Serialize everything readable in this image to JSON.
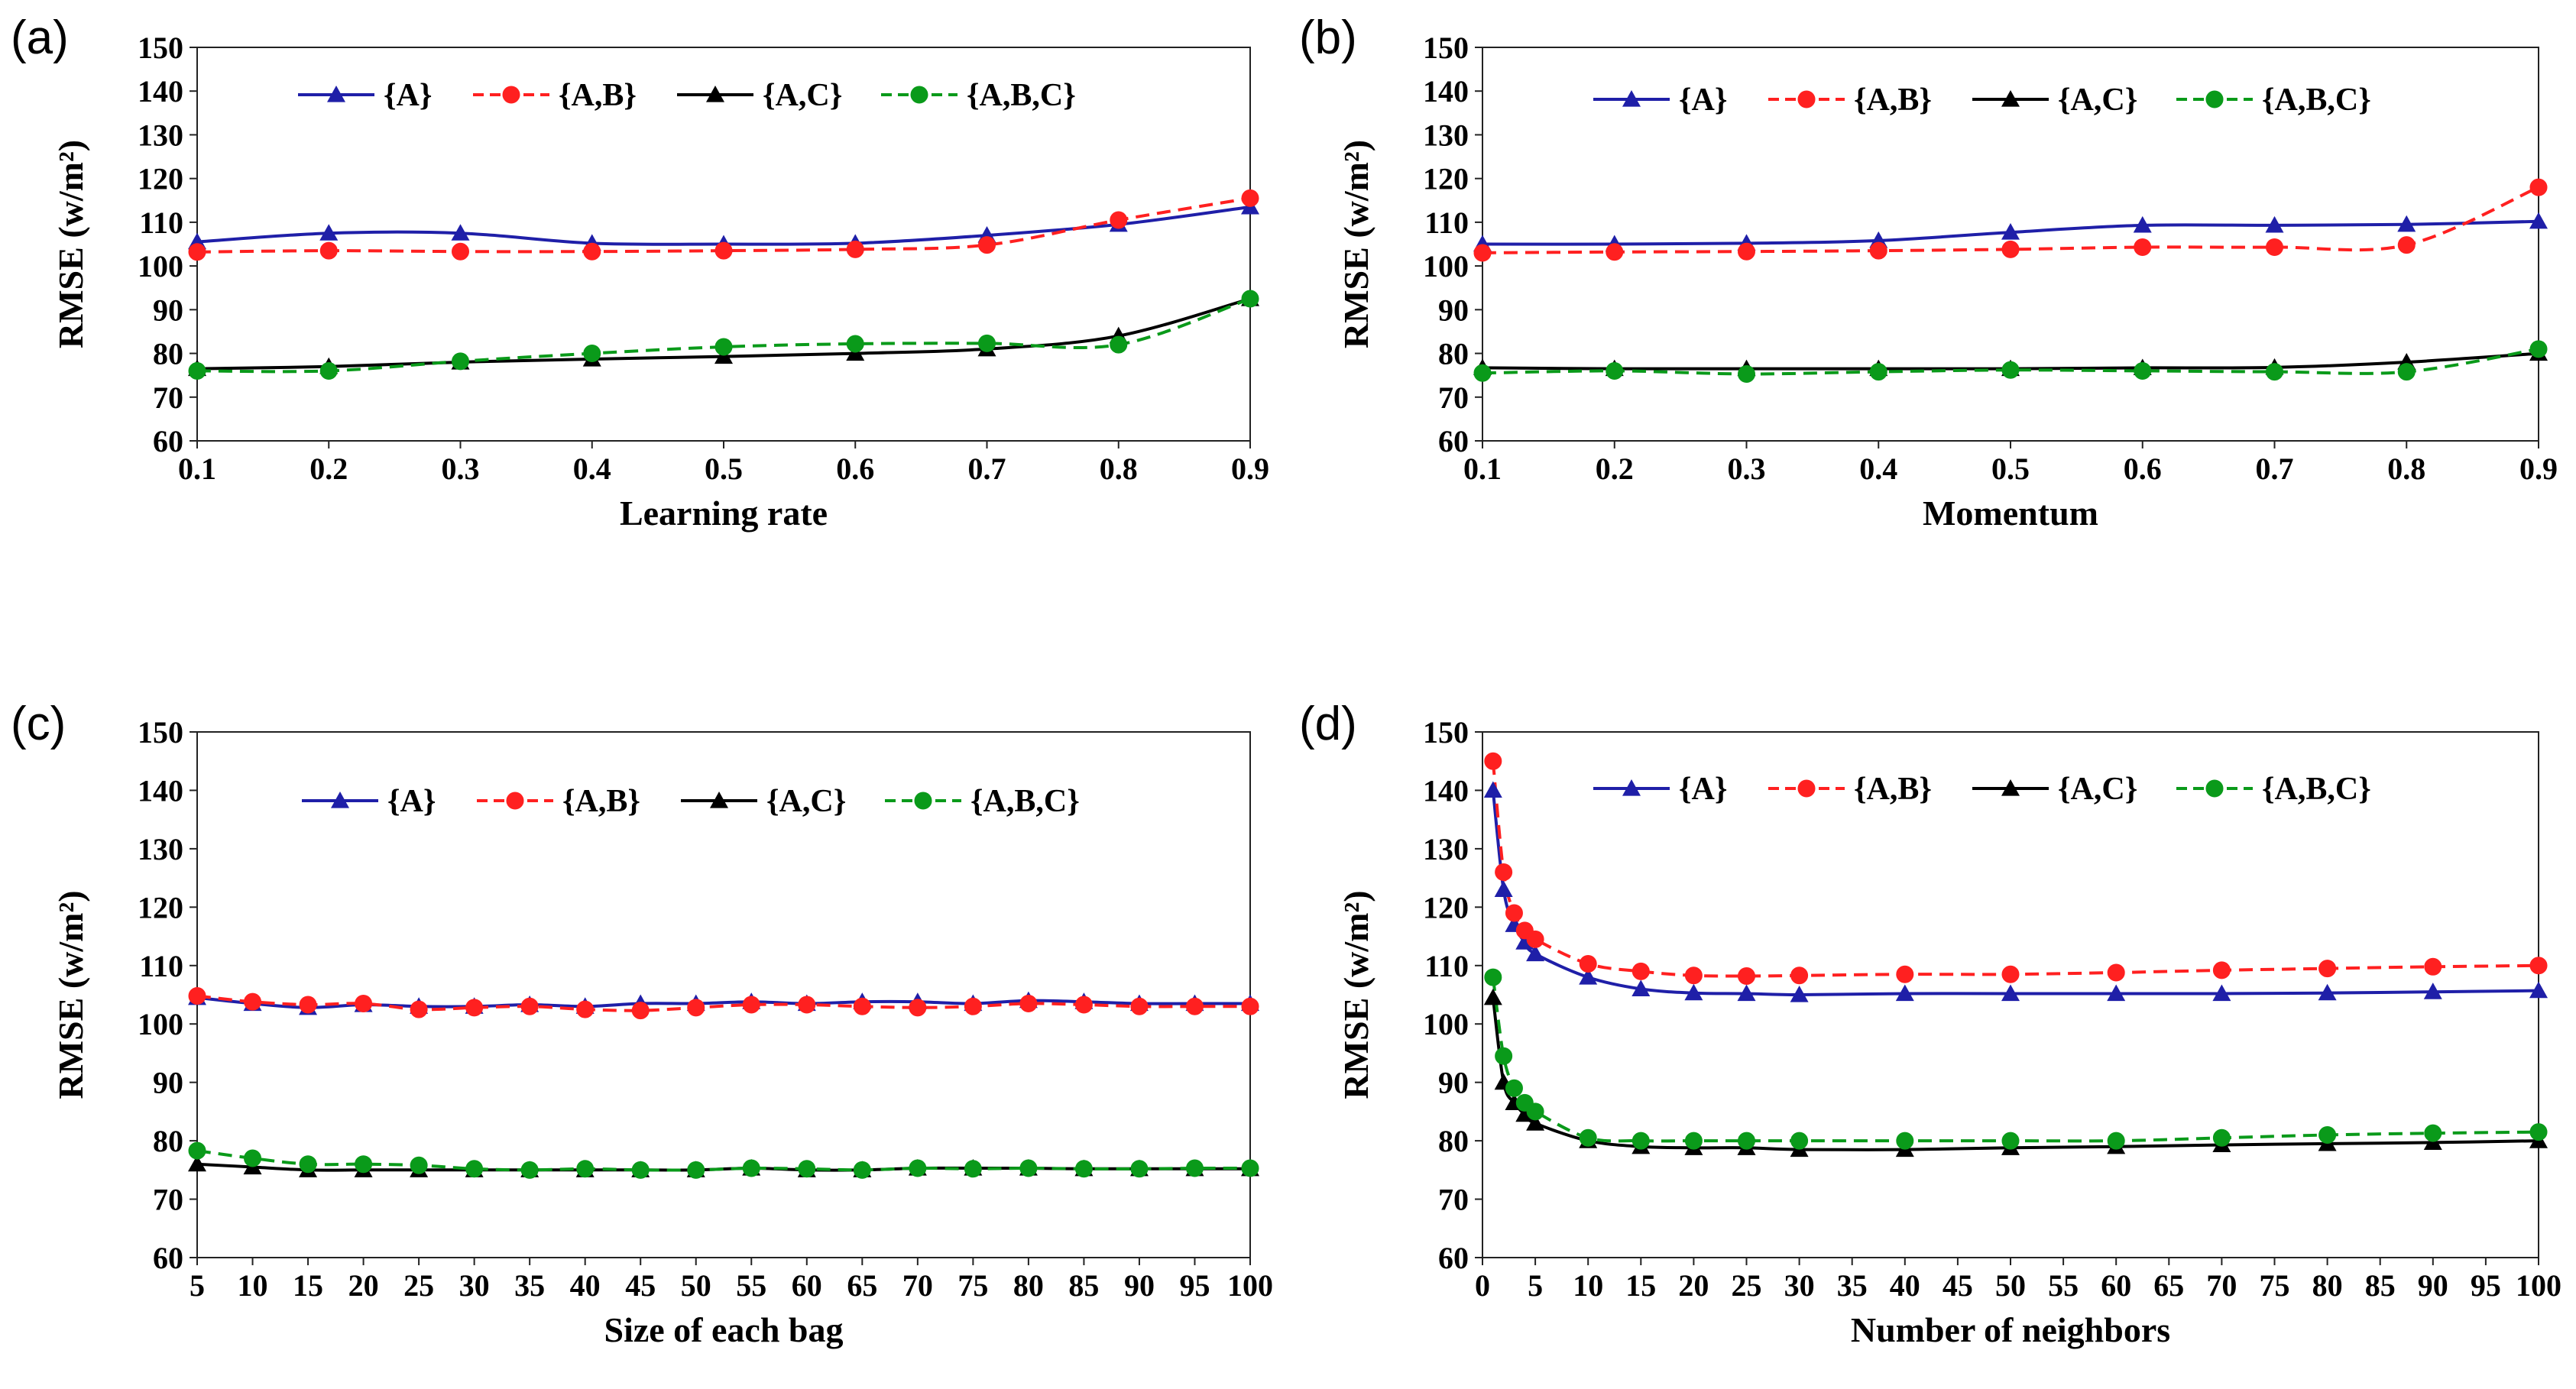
{
  "chart_data": [
    {
      "panel": "(a)",
      "type": "line",
      "x": [
        0.1,
        0.2,
        0.3,
        0.4,
        0.5,
        0.6,
        0.7,
        0.8,
        0.9
      ],
      "x_ticks": [
        "0.1",
        "0.2",
        "0.3",
        "0.4",
        "0.5",
        "0.6",
        "0.7",
        "0.8",
        "0.9"
      ],
      "xlabel": "Learning rate",
      "ylabel": "RMSE (w/m²)",
      "ylim": [
        60,
        150
      ],
      "y_ticks": [
        "60",
        "70",
        "80",
        "90",
        "100",
        "110",
        "120",
        "130",
        "140",
        "150"
      ],
      "series": [
        {
          "name": "{A}",
          "color": "#1f1fa8",
          "dash": "solid",
          "marker": "triangle",
          "values": [
            105.5,
            107.5,
            107.5,
            105.2,
            105.0,
            105.2,
            107.0,
            109.5,
            113.5
          ]
        },
        {
          "name": "{A,B}",
          "color": "#ff2020",
          "dash": "dashed",
          "marker": "circle",
          "values": [
            103.2,
            103.5,
            103.3,
            103.3,
            103.5,
            103.8,
            104.8,
            110.5,
            115.5
          ]
        },
        {
          "name": "{A,C}",
          "color": "#000000",
          "dash": "solid",
          "marker": "triangle",
          "values": [
            76.5,
            77.0,
            78.0,
            78.7,
            79.3,
            80.0,
            81.0,
            84.0,
            92.5
          ]
        },
        {
          "name": "{A,B,C}",
          "color": "#0a9a1a",
          "dash": "dashed",
          "marker": "circle",
          "values": [
            76.0,
            76.0,
            78.2,
            80.0,
            81.5,
            82.2,
            82.3,
            82.0,
            92.5
          ]
        }
      ]
    },
    {
      "panel": "(b)",
      "type": "line",
      "x": [
        0.1,
        0.2,
        0.3,
        0.4,
        0.5,
        0.6,
        0.7,
        0.8,
        0.9
      ],
      "x_ticks": [
        "0.1",
        "0.2",
        "0.3",
        "0.4",
        "0.5",
        "0.6",
        "0.7",
        "0.8",
        "0.9"
      ],
      "xlabel": "Momentum",
      "ylabel": "RMSE (w/m²)",
      "ylim": [
        60,
        150
      ],
      "y_ticks": [
        "60",
        "70",
        "80",
        "90",
        "100",
        "110",
        "120",
        "130",
        "140",
        "150"
      ],
      "series": [
        {
          "name": "{A}",
          "color": "#1f1fa8",
          "dash": "solid",
          "marker": "triangle",
          "values": [
            105.0,
            105.0,
            105.2,
            105.8,
            107.7,
            109.3,
            109.3,
            109.5,
            110.2
          ]
        },
        {
          "name": "{A,B}",
          "color": "#ff2020",
          "dash": "dashed",
          "marker": "circle",
          "values": [
            103.0,
            103.2,
            103.3,
            103.5,
            103.8,
            104.3,
            104.3,
            104.8,
            118.0
          ]
        },
        {
          "name": "{A,C}",
          "color": "#000000",
          "dash": "solid",
          "marker": "triangle",
          "values": [
            76.7,
            76.5,
            76.5,
            76.5,
            76.5,
            76.7,
            76.8,
            78.0,
            80.0
          ]
        },
        {
          "name": "{A,B,C}",
          "color": "#0a9a1a",
          "dash": "dashed",
          "marker": "circle",
          "values": [
            75.5,
            76.0,
            75.3,
            75.8,
            76.2,
            76.0,
            75.8,
            75.8,
            81.0
          ]
        }
      ]
    },
    {
      "panel": "(c)",
      "type": "line",
      "x": [
        5,
        10,
        15,
        20,
        25,
        30,
        35,
        40,
        45,
        50,
        55,
        60,
        65,
        70,
        75,
        80,
        85,
        90,
        95,
        100
      ],
      "x_ticks": [
        "5",
        "10",
        "15",
        "20",
        "25",
        "30",
        "35",
        "40",
        "45",
        "50",
        "55",
        "60",
        "65",
        "70",
        "75",
        "80",
        "85",
        "90",
        "95",
        "100"
      ],
      "xlabel": "Size of each bag",
      "ylabel": "RMSE (w/m²)",
      "ylim": [
        60,
        150
      ],
      "y_ticks": [
        "60",
        "70",
        "80",
        "90",
        "100",
        "110",
        "120",
        "130",
        "140",
        "150"
      ],
      "series": [
        {
          "name": "{A}",
          "color": "#1f1fa8",
          "dash": "solid",
          "marker": "triangle",
          "values": [
            104.5,
            103.5,
            102.8,
            103.3,
            103.0,
            103.0,
            103.3,
            103.0,
            103.5,
            103.5,
            103.8,
            103.5,
            103.8,
            103.8,
            103.5,
            104.0,
            103.8,
            103.5,
            103.5,
            103.5
          ]
        },
        {
          "name": "{A,B}",
          "color": "#ff2020",
          "dash": "dashed",
          "marker": "circle",
          "values": [
            104.8,
            103.8,
            103.3,
            103.5,
            102.5,
            102.8,
            103.0,
            102.5,
            102.3,
            102.8,
            103.3,
            103.3,
            103.0,
            102.8,
            103.0,
            103.5,
            103.3,
            103.0,
            103.0,
            103.0
          ]
        },
        {
          "name": "{A,C}",
          "color": "#000000",
          "dash": "solid",
          "marker": "triangle",
          "values": [
            76.0,
            75.5,
            75.0,
            75.0,
            75.0,
            75.0,
            75.0,
            75.0,
            75.0,
            75.0,
            75.3,
            75.0,
            75.0,
            75.3,
            75.3,
            75.3,
            75.2,
            75.2,
            75.2,
            75.2
          ]
        },
        {
          "name": "{A,B,C}",
          "color": "#0a9a1a",
          "dash": "dashed",
          "marker": "circle",
          "values": [
            78.3,
            77.0,
            76.0,
            76.0,
            75.8,
            75.2,
            75.0,
            75.2,
            75.0,
            75.0,
            75.3,
            75.2,
            75.0,
            75.3,
            75.2,
            75.3,
            75.2,
            75.2,
            75.3,
            75.3
          ]
        }
      ]
    },
    {
      "panel": "(d)",
      "type": "line",
      "x": [
        1,
        2,
        3,
        4,
        5,
        10,
        15,
        20,
        25,
        30,
        40,
        50,
        60,
        70,
        80,
        90,
        100
      ],
      "x_ticks": [
        "0",
        "5",
        "10",
        "15",
        "20",
        "25",
        "30",
        "35",
        "40",
        "45",
        "50",
        "55",
        "60",
        "65",
        "70",
        "75",
        "80",
        "85",
        "90",
        "95",
        "100"
      ],
      "xlabel": "Number of neighbors",
      "ylabel": "RMSE (w/m²)",
      "xlim": [
        0,
        100
      ],
      "ylim": [
        60,
        150
      ],
      "y_ticks": [
        "60",
        "70",
        "80",
        "90",
        "100",
        "110",
        "120",
        "130",
        "140",
        "150"
      ],
      "series": [
        {
          "name": "{A}",
          "color": "#1f1fa8",
          "dash": "solid",
          "marker": "triangle",
          "values": [
            140.0,
            123.0,
            117.0,
            114.0,
            112.0,
            108.0,
            106.0,
            105.3,
            105.2,
            105.0,
            105.2,
            105.2,
            105.2,
            105.2,
            105.3,
            105.5,
            105.7
          ]
        },
        {
          "name": "{A,B}",
          "color": "#ff2020",
          "dash": "dashed",
          "marker": "circle",
          "values": [
            145.0,
            126.0,
            119.0,
            116.0,
            114.5,
            110.3,
            109.0,
            108.3,
            108.2,
            108.3,
            108.5,
            108.5,
            108.8,
            109.2,
            109.5,
            109.8,
            110.0
          ]
        },
        {
          "name": "{A,C}",
          "color": "#000000",
          "dash": "solid",
          "marker": "triangle",
          "values": [
            104.5,
            90.0,
            86.5,
            84.5,
            83.0,
            80.0,
            79.0,
            78.8,
            78.8,
            78.5,
            78.5,
            78.8,
            79.0,
            79.3,
            79.5,
            79.7,
            80.0
          ]
        },
        {
          "name": "{A,B,C}",
          "color": "#0a9a1a",
          "dash": "dashed",
          "marker": "circle",
          "values": [
            108.0,
            94.5,
            89.0,
            86.5,
            85.0,
            80.5,
            80.0,
            80.0,
            80.0,
            80.0,
            80.0,
            80.0,
            80.0,
            80.5,
            81.0,
            81.3,
            81.5
          ]
        }
      ]
    }
  ]
}
